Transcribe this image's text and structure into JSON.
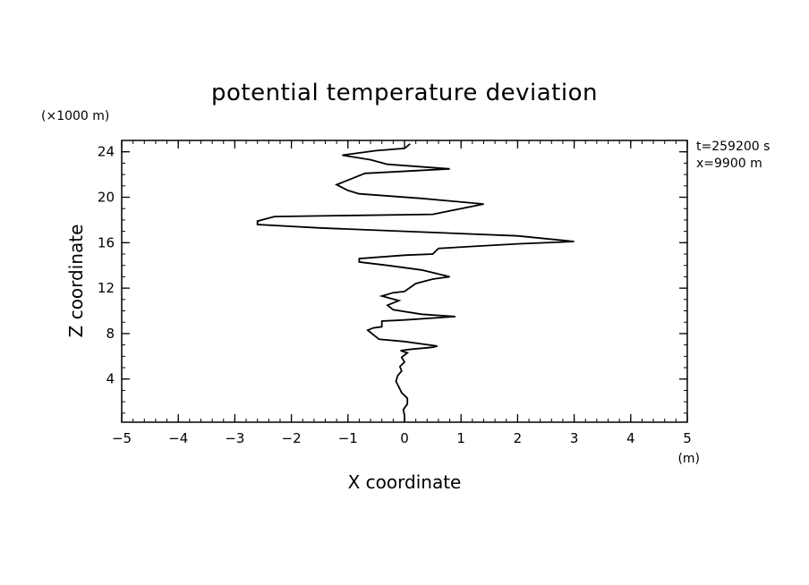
{
  "chart_data": {
    "type": "line",
    "title": "potential temperature deviation",
    "xlabel": "X coordinate",
    "ylabel": "Z coordinate",
    "x_unit": "(m)",
    "y_unit": "(×1000 m)",
    "annotations": [
      "t=259200 s",
      "x=9900 m"
    ],
    "xlim": [
      -5,
      5
    ],
    "ylim": [
      0.2,
      25
    ],
    "x_ticks": [
      -5,
      -4,
      -3,
      -2,
      -1,
      0,
      1,
      2,
      3,
      4,
      5
    ],
    "y_ticks": [
      4,
      8,
      12,
      16,
      20,
      24
    ],
    "grid": false,
    "series": [
      {
        "points": [
          [
            0.0,
            0.2
          ],
          [
            0.0,
            0.8
          ],
          [
            -0.02,
            1.3
          ],
          [
            0.05,
            1.8
          ],
          [
            0.05,
            2.3
          ],
          [
            -0.05,
            2.8
          ],
          [
            -0.1,
            3.3
          ],
          [
            -0.15,
            3.8
          ],
          [
            -0.12,
            4.3
          ],
          [
            -0.05,
            4.7
          ],
          [
            -0.08,
            5.1
          ],
          [
            0.0,
            5.5
          ],
          [
            -0.05,
            5.9
          ],
          [
            0.05,
            6.3
          ],
          [
            -0.07,
            6.5
          ],
          [
            0.08,
            6.6
          ],
          [
            0.5,
            6.8
          ],
          [
            0.58,
            6.9
          ],
          [
            0.0,
            7.3
          ],
          [
            -0.45,
            7.5
          ],
          [
            -0.55,
            7.9
          ],
          [
            -0.65,
            8.3
          ],
          [
            -0.55,
            8.5
          ],
          [
            -0.4,
            8.6
          ],
          [
            -0.4,
            9.1
          ],
          [
            0.0,
            9.2
          ],
          [
            0.9,
            9.5
          ],
          [
            0.3,
            9.7
          ],
          [
            -0.2,
            10.1
          ],
          [
            -0.3,
            10.5
          ],
          [
            -0.1,
            10.9
          ],
          [
            -0.4,
            11.3
          ],
          [
            -0.2,
            11.6
          ],
          [
            0.0,
            11.7
          ],
          [
            0.2,
            12.4
          ],
          [
            0.5,
            12.8
          ],
          [
            0.8,
            13.0
          ],
          [
            0.3,
            13.6
          ],
          [
            -0.3,
            14.0
          ],
          [
            -0.8,
            14.3
          ],
          [
            -0.8,
            14.6
          ],
          [
            0.0,
            14.9
          ],
          [
            0.5,
            15.0
          ],
          [
            0.6,
            15.5
          ],
          [
            2.0,
            15.9
          ],
          [
            3.0,
            16.1
          ],
          [
            2.0,
            16.6
          ],
          [
            0.0,
            17.0
          ],
          [
            -1.5,
            17.3
          ],
          [
            -2.6,
            17.6
          ],
          [
            -2.6,
            17.9
          ],
          [
            -2.3,
            18.3
          ],
          [
            0.5,
            18.5
          ],
          [
            1.4,
            19.4
          ],
          [
            0.3,
            19.9
          ],
          [
            -0.8,
            20.3
          ],
          [
            -1.0,
            20.6
          ],
          [
            -1.2,
            21.1
          ],
          [
            -1.05,
            21.4
          ],
          [
            -0.7,
            22.1
          ],
          [
            0.8,
            22.5
          ],
          [
            -0.3,
            22.9
          ],
          [
            -0.6,
            23.3
          ],
          [
            -1.1,
            23.7
          ],
          [
            -0.5,
            24.1
          ],
          [
            0.0,
            24.3
          ],
          [
            0.1,
            24.7
          ]
        ]
      }
    ]
  }
}
